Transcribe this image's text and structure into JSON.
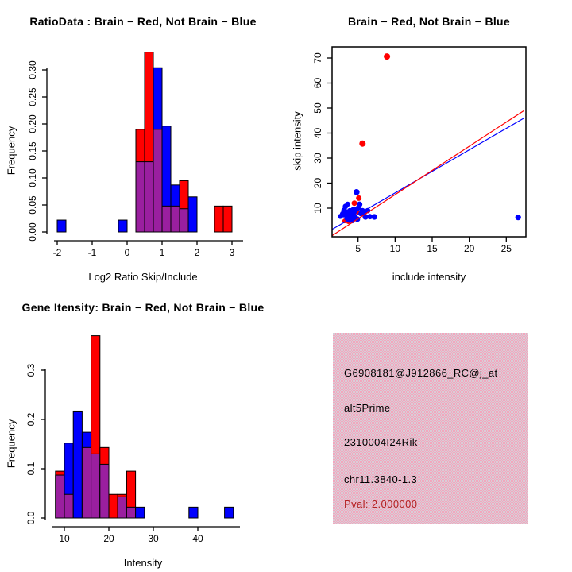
{
  "colors": {
    "red": "#FF0000",
    "blue": "#0000FF",
    "overlap_purple": "#9A1F9F",
    "axis": "#000000",
    "pval_text": "#B22222",
    "info_bg_pink": "#F3A6BD",
    "info_bg_gray": "#D8CED8"
  },
  "chart_data": [
    {
      "type": "histogram",
      "title": "RatioData : Brain − Red, Not Brain − Blue",
      "xlabel": "Log2 Ratio Skip/Include",
      "ylabel": "Frequency",
      "legend_note": "Brain = red bars, Not Brain = blue bars, overlap = purple",
      "bin_width": 0.25,
      "bins": [
        {
          "x0": -2.0,
          "red": 0,
          "blue": 0.022
        },
        {
          "x0": -0.25,
          "red": 0,
          "blue": 0.022
        },
        {
          "x0": 0.25,
          "red": 0.19,
          "blue": 0.13
        },
        {
          "x0": 0.5,
          "red": 0.333,
          "blue": 0.13
        },
        {
          "x0": 0.75,
          "red": 0.19,
          "blue": 0.304
        },
        {
          "x0": 1.0,
          "red": 0.048,
          "blue": 0.196
        },
        {
          "x0": 1.25,
          "red": 0.048,
          "blue": 0.087
        },
        {
          "x0": 1.5,
          "red": 0.095,
          "blue": 0.043
        },
        {
          "x0": 1.75,
          "red": 0,
          "blue": 0.065
        },
        {
          "x0": 2.5,
          "red": 0.048,
          "blue": 0
        },
        {
          "x0": 2.75,
          "red": 0.048,
          "blue": 0
        }
      ],
      "xticks": [
        -2,
        -1,
        0,
        1,
        2,
        3
      ],
      "yticks": [
        [
          0,
          "0.00"
        ],
        [
          0.05,
          "0.05"
        ],
        [
          0.1,
          "0.10"
        ],
        [
          0.15,
          "0.15"
        ],
        [
          0.2,
          "0.20"
        ],
        [
          0.25,
          "0.25"
        ],
        [
          0.3,
          "0.30"
        ]
      ],
      "xlim": [
        -2.2,
        3.2
      ],
      "ylim": [
        0,
        0.35
      ]
    },
    {
      "type": "scatter",
      "title": "Brain − Red, Not Brain − Blue",
      "xlabel": "include intensity",
      "ylabel": "skip intensity",
      "legend_note": "Brain = red points/line, Not Brain = blue points/line",
      "xticks": [
        5,
        10,
        15,
        20,
        25
      ],
      "yticks": [
        10,
        20,
        30,
        40,
        50,
        60,
        70
      ],
      "xlim": [
        1.5,
        27.6
      ],
      "ylim": [
        -1.5,
        74.5
      ],
      "red_points": [
        [
          8.9,
          70.6,
          4
        ],
        [
          5.6,
          35.8,
          4
        ],
        [
          5.1,
          14.0,
          3.5
        ],
        [
          4.5,
          12.0,
          3.5
        ],
        [
          3.2,
          4.9,
          3
        ],
        [
          3.7,
          4.6,
          3
        ],
        [
          4.2,
          5.2,
          3
        ],
        [
          4.9,
          8.4,
          3
        ],
        [
          5.9,
          7.0,
          3
        ],
        [
          4.0,
          6.3,
          3
        ]
      ],
      "blue_points": [
        [
          2.6,
          6.7,
          3.2
        ],
        [
          3.0,
          7.6,
          4.2
        ],
        [
          3.1,
          9.2,
          3.4
        ],
        [
          3.3,
          10.7,
          3.4
        ],
        [
          3.4,
          8.2,
          4.4
        ],
        [
          3.5,
          6.0,
          3.4
        ],
        [
          3.6,
          11.6,
          3.2
        ],
        [
          3.7,
          7.2,
          4.4
        ],
        [
          3.8,
          5.3,
          3.4
        ],
        [
          3.9,
          9.0,
          3.4
        ],
        [
          4.0,
          6.6,
          4.6
        ],
        [
          4.1,
          8.0,
          3.6
        ],
        [
          4.2,
          5.0,
          3.4
        ],
        [
          4.3,
          7.4,
          4.2
        ],
        [
          4.4,
          9.6,
          3.4
        ],
        [
          4.5,
          6.2,
          4.4
        ],
        [
          4.6,
          8.8,
          3.4
        ],
        [
          4.8,
          16.4,
          3.8
        ],
        [
          4.9,
          5.6,
          3.6
        ],
        [
          5.0,
          10.0,
          3.4
        ],
        [
          5.2,
          11.5,
          3.6
        ],
        [
          5.4,
          7.8,
          3.4
        ],
        [
          5.6,
          9.0,
          3.4
        ],
        [
          5.8,
          8.4,
          3.4
        ],
        [
          6.0,
          6.5,
          3.6
        ],
        [
          6.3,
          9.0,
          3.4
        ],
        [
          6.6,
          6.6,
          3.4
        ],
        [
          7.2,
          6.5,
          3.6
        ],
        [
          26.6,
          6.3,
          3.6
        ]
      ],
      "red_line": {
        "x1": 1.5,
        "y1": -1.0,
        "x2": 27.4,
        "y2": 49.0
      },
      "blue_line": {
        "x1": 1.5,
        "y1": 1.5,
        "x2": 27.4,
        "y2": 46.0
      }
    },
    {
      "type": "histogram",
      "title": "Gene Itensity: Brain − Red, Not Brain − Blue",
      "xlabel": "Intensity",
      "ylabel": "Frequency",
      "legend_note": "Brain = red bars, Not Brain = blue bars, overlap = purple",
      "bin_width": 2,
      "bins": [
        {
          "x0": 8,
          "red": 0.095,
          "blue": 0.087
        },
        {
          "x0": 10,
          "red": 0.048,
          "blue": 0.152
        },
        {
          "x0": 12,
          "red": 0,
          "blue": 0.217
        },
        {
          "x0": 14,
          "red": 0.143,
          "blue": 0.174
        },
        {
          "x0": 16,
          "red": 0.37,
          "blue": 0.13
        },
        {
          "x0": 18,
          "red": 0.143,
          "blue": 0.109
        },
        {
          "x0": 20,
          "red": 0.048,
          "blue": 0
        },
        {
          "x0": 22,
          "red": 0.048,
          "blue": 0.043
        },
        {
          "x0": 24,
          "red": 0.095,
          "blue": 0.022
        },
        {
          "x0": 26,
          "red": 0,
          "blue": 0.022
        },
        {
          "x0": 38,
          "red": 0,
          "blue": 0.022
        },
        {
          "x0": 46,
          "red": 0,
          "blue": 0.022
        }
      ],
      "xticks": [
        10,
        20,
        30,
        40
      ],
      "yticks": [
        [
          0,
          "0.0"
        ],
        [
          0.1,
          "0.1"
        ],
        [
          0.2,
          "0.2"
        ],
        [
          0.3,
          "0.3"
        ]
      ],
      "xlim": [
        7,
        49
      ],
      "ylim": [
        0,
        0.385
      ]
    }
  ],
  "info_panel": {
    "probe_id": "G6908181@J912866_RC@j_at",
    "splice_type": "alt5Prime",
    "gene_symbol": "2310004I24Rik",
    "locus": "chr11.3840-1.3",
    "pval_text": "Pval: 2.000000"
  }
}
